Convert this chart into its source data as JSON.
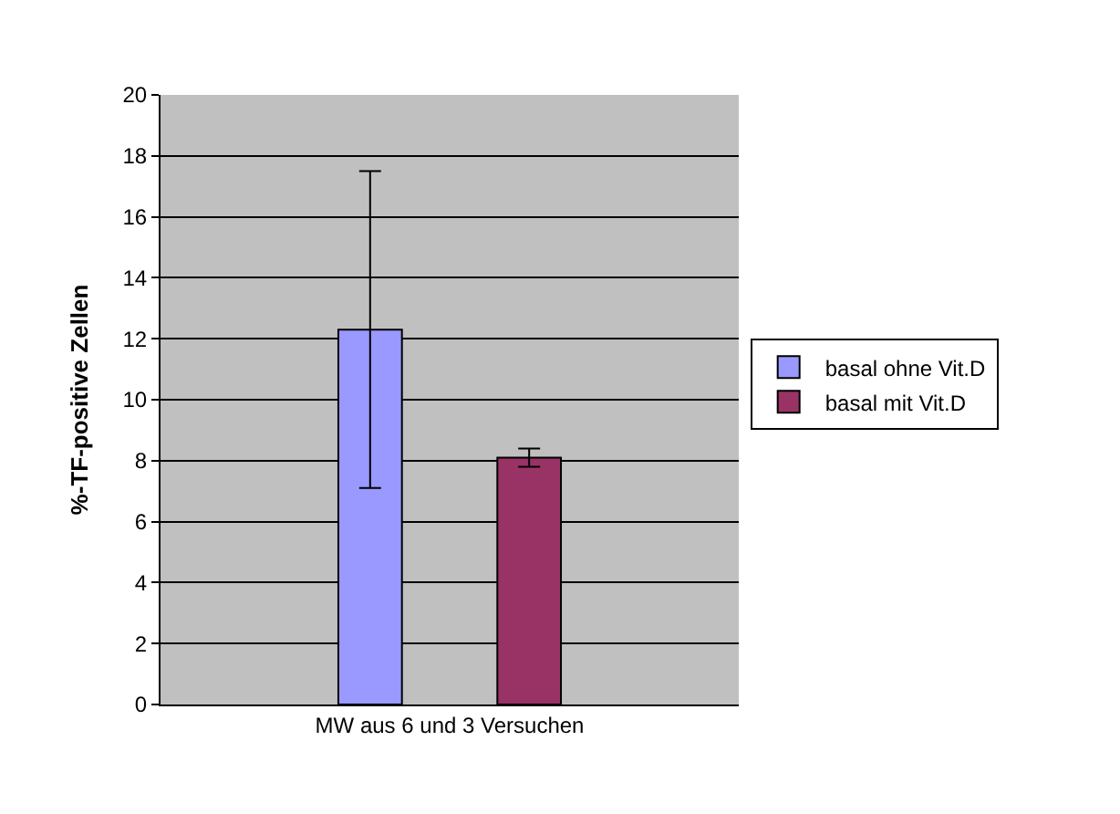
{
  "chart_data": {
    "type": "bar",
    "ylabel": "%-TF-positive Zellen",
    "categories": [
      "MW aus 6 und 3 Versuchen"
    ],
    "series": [
      {
        "name": "basal ohne Vit.D",
        "color": "#9999ff",
        "values": [
          12.3
        ],
        "errors": [
          5.2
        ]
      },
      {
        "name": "basal mit Vit.D",
        "color": "#993366",
        "values": [
          8.1
        ],
        "errors": [
          0.3
        ]
      }
    ],
    "ylim": [
      0,
      20
    ],
    "yticks": [
      0,
      2,
      4,
      6,
      8,
      10,
      12,
      14,
      16,
      18,
      20
    ],
    "grid": "y",
    "legend": "right"
  }
}
